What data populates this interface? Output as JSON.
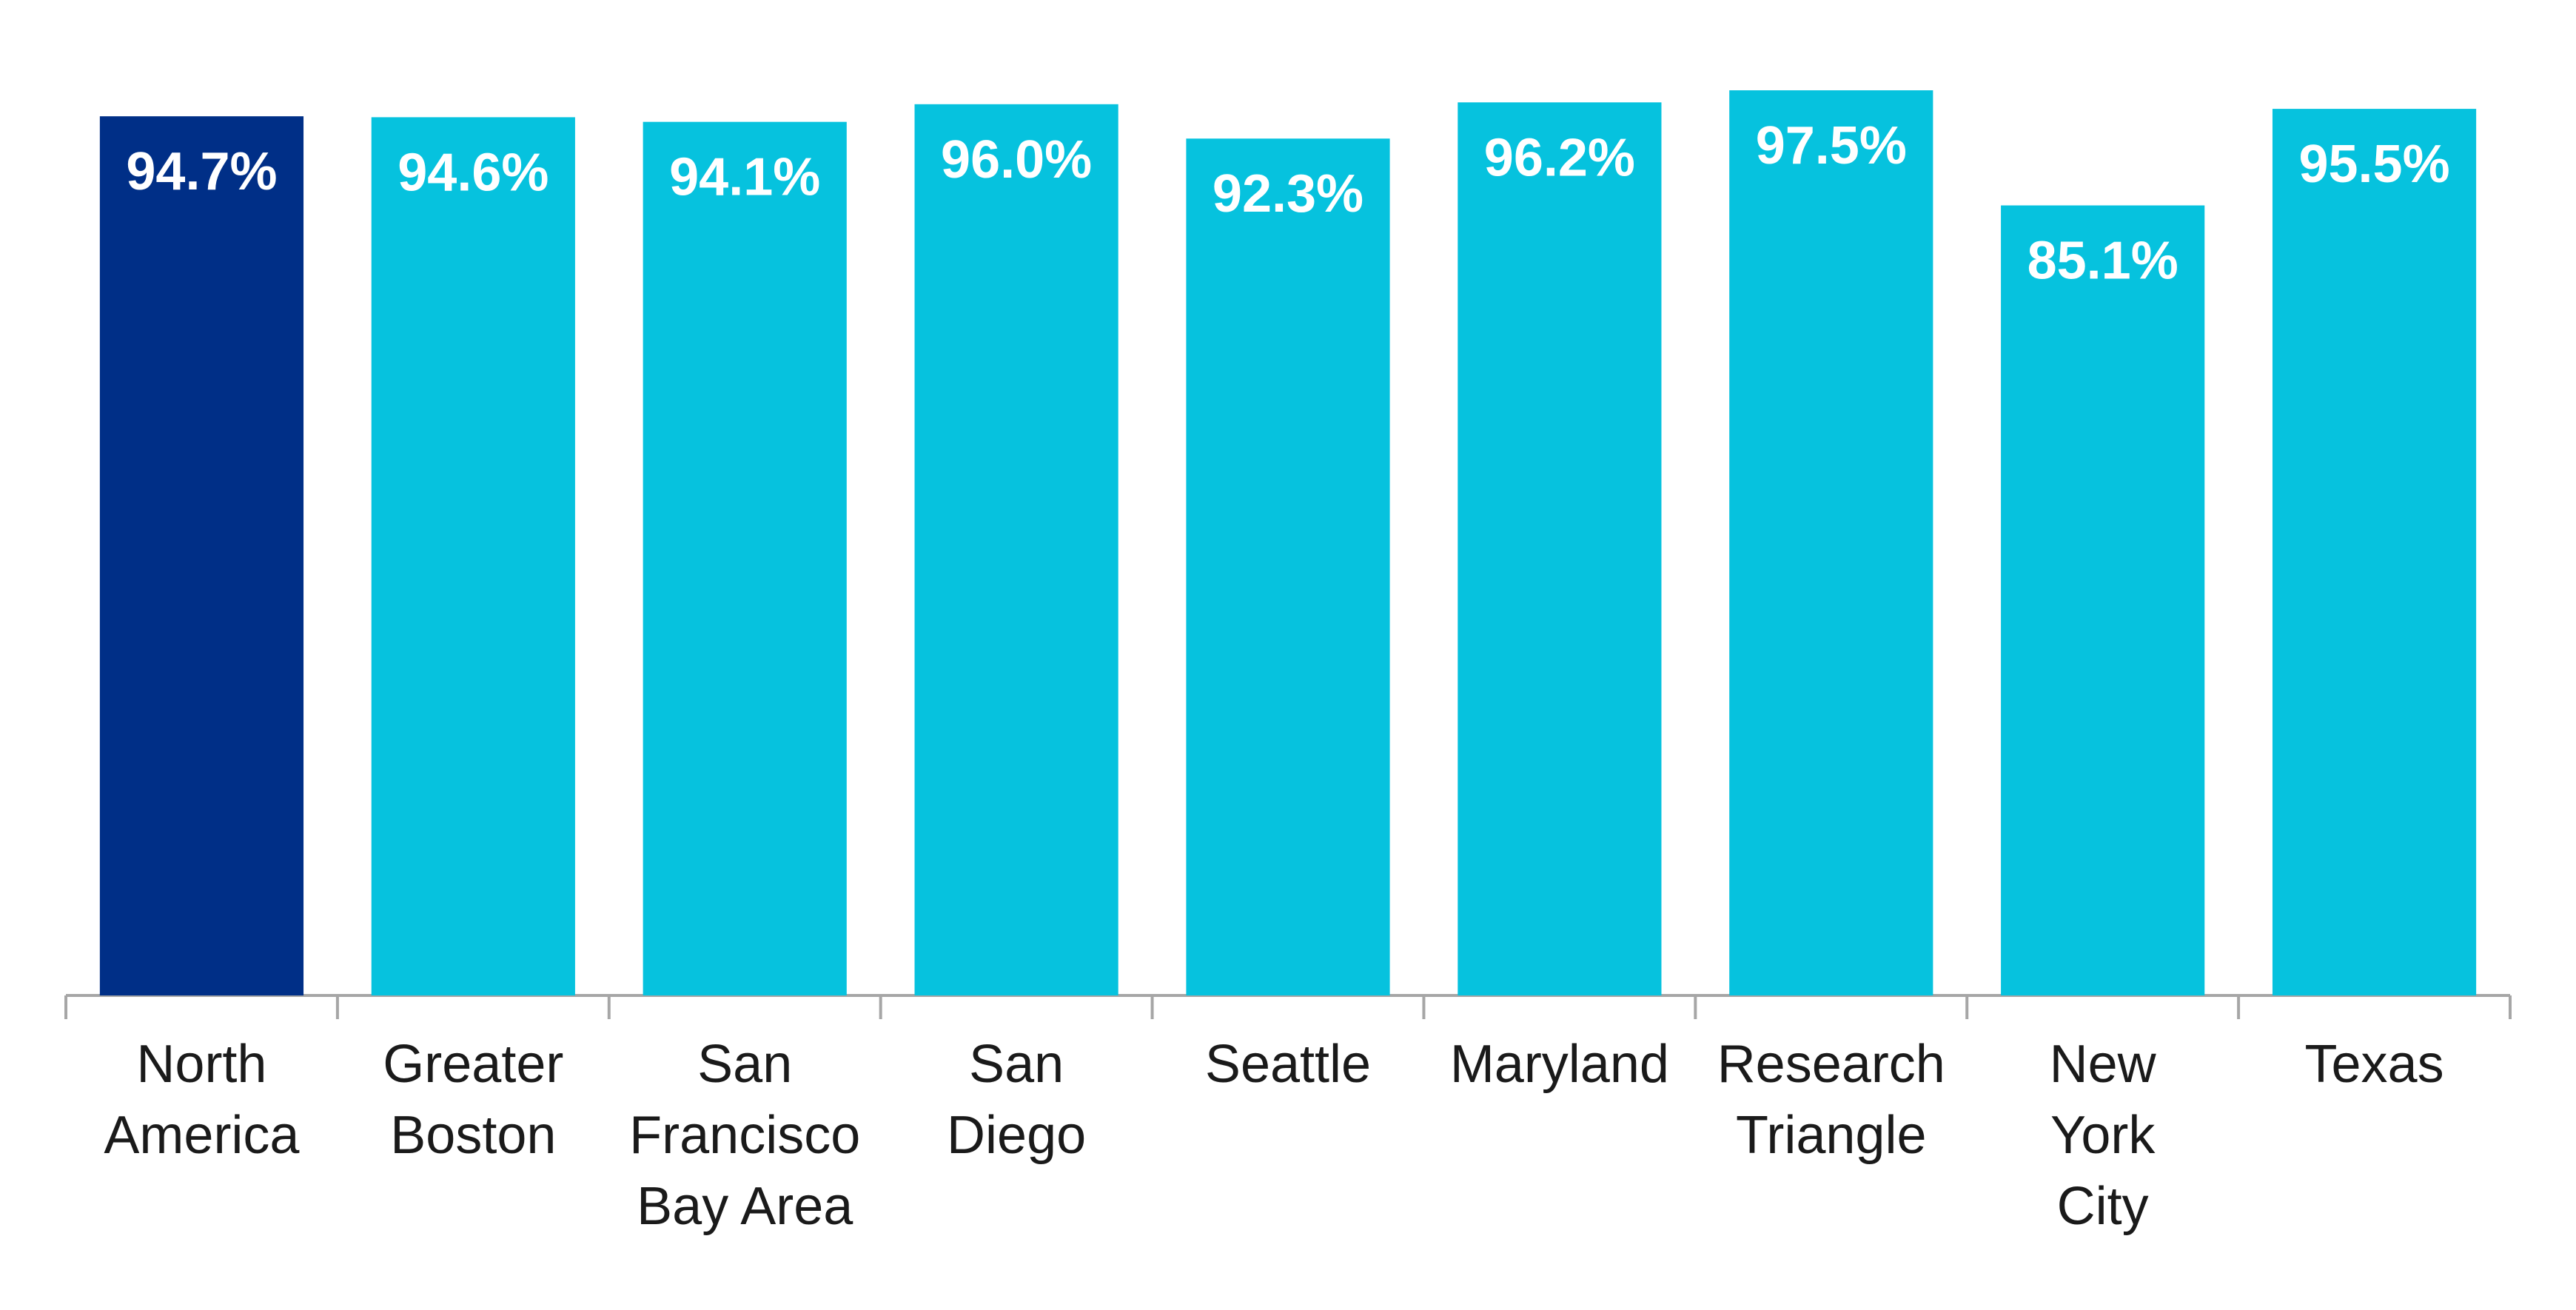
{
  "chart_data": {
    "type": "bar",
    "categories": [
      [
        "North",
        "America"
      ],
      [
        "Greater",
        "Boston"
      ],
      [
        "San",
        "Francisco",
        "Bay Area"
      ],
      [
        "San",
        "Diego"
      ],
      [
        "Seattle"
      ],
      [
        "Maryland"
      ],
      [
        "Research",
        "Triangle"
      ],
      [
        "New",
        "York",
        "City"
      ],
      [
        "Texas"
      ]
    ],
    "values": [
      94.7,
      94.6,
      94.1,
      96.0,
      92.3,
      96.2,
      97.5,
      85.1,
      95.5
    ],
    "value_labels": [
      "94.7%",
      "94.6%",
      "94.1%",
      "96.0%",
      "92.3%",
      "96.2%",
      "97.5%",
      "85.1%",
      "95.5%"
    ],
    "colors": [
      "#002f87",
      "#06c2de",
      "#06c2de",
      "#06c2de",
      "#06c2de",
      "#06c2de",
      "#06c2de",
      "#06c2de",
      "#06c2de"
    ]
  }
}
